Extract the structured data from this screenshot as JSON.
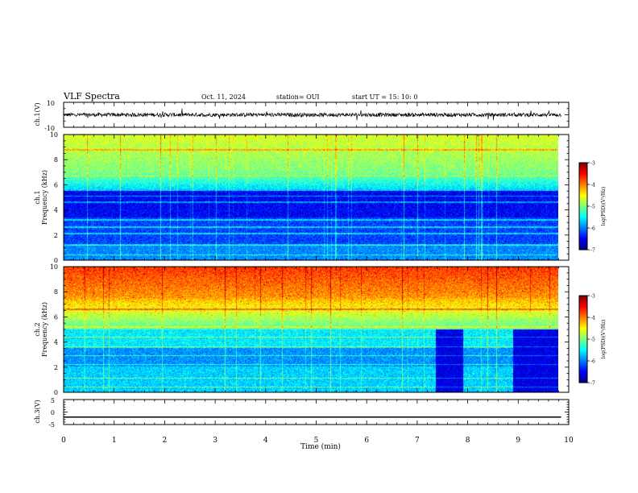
{
  "header": {
    "title": "VLF Spectra",
    "date": "Oct. 11, 2024",
    "station": "station= OUI",
    "start_ut": "start  UT  =   15: 10: 0"
  },
  "chart_data": [
    {
      "type": "line",
      "id": "ch1-waveform",
      "ylabel": "ch.1(V)",
      "ylim": [
        -10,
        10
      ],
      "ytick_labels": [
        "10",
        "-10"
      ],
      "xlim": [
        0,
        10
      ],
      "description_values": {
        "baseline_v": 0,
        "noise_amplitude_v": 1.5
      }
    },
    {
      "type": "heatmap",
      "id": "ch1-spectrogram",
      "ylabel_line1": "ch.1",
      "ylabel_line2": "Frequency (kHz)",
      "ylim": [
        0,
        10
      ],
      "ytick_labels": [
        "0",
        "2",
        "4",
        "6",
        "8",
        "10"
      ],
      "xlim": [
        0,
        9.85
      ],
      "colorbar": {
        "label": "log(PSD)(V²/Hz)",
        "range": [
          -7,
          -3
        ],
        "tick_labels": [
          "-3",
          "-4",
          "-5",
          "-6",
          "-7"
        ]
      }
    },
    {
      "type": "heatmap",
      "id": "ch2-spectrogram",
      "ylabel_line1": "ch.2",
      "ylabel_line2": "Frequency (kHz)",
      "ylim": [
        0,
        10
      ],
      "ytick_labels": [
        "0",
        "2",
        "4",
        "6",
        "8",
        "10"
      ],
      "xlim": [
        0,
        9.85
      ],
      "colorbar": {
        "label": "log(PSD)(V²/Hz)",
        "range": [
          -7,
          -3
        ],
        "tick_labels": [
          "-3",
          "-4",
          "-5",
          "-6",
          "-7"
        ]
      }
    },
    {
      "type": "line",
      "id": "ch3-waveform",
      "ylabel": "ch.3(V)",
      "ylim": [
        -5,
        5
      ],
      "ytick_labels": [
        "5",
        "0",
        "-5"
      ],
      "xlim": [
        0,
        10
      ],
      "xlabel": "Time  (min)",
      "xtick_labels": [
        "0",
        "1",
        "2",
        "3",
        "4",
        "5",
        "6",
        "7",
        "8",
        "9",
        "10"
      ],
      "series": [
        {
          "x": [
            0,
            9.85
          ],
          "y": [
            -2,
            -2
          ]
        }
      ]
    }
  ]
}
